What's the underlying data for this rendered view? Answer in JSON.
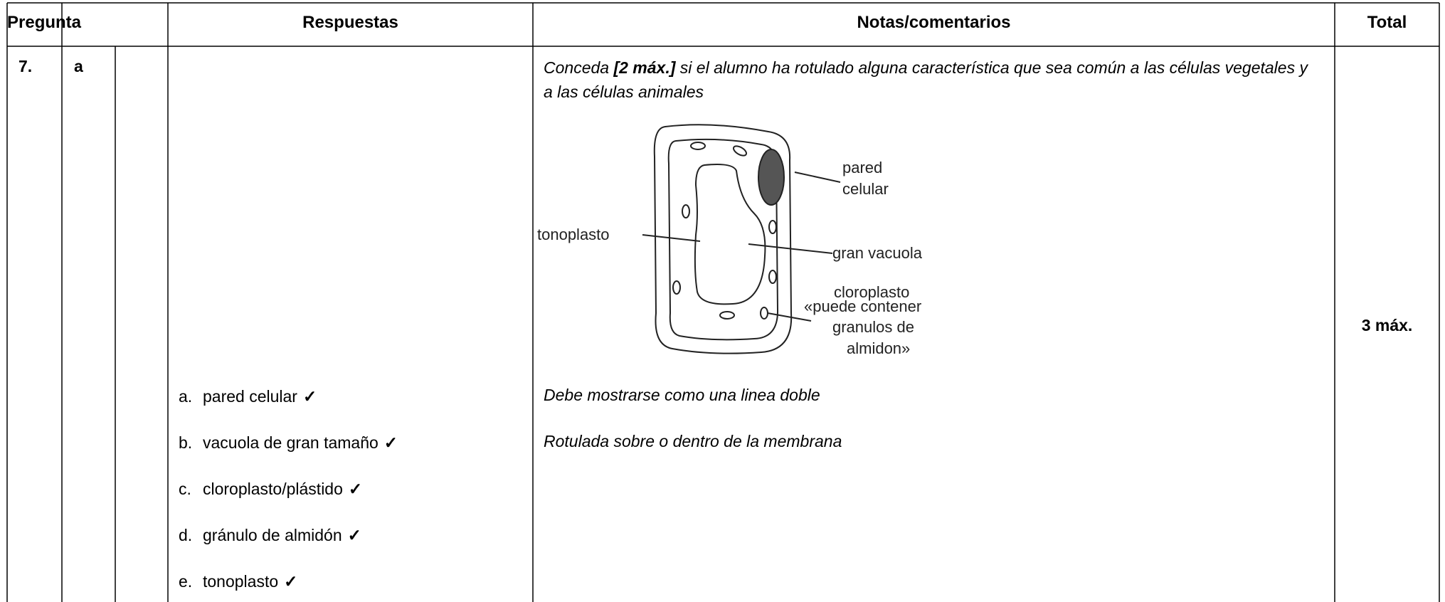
{
  "table": {
    "header": [
      "Pregunta",
      "Respuestas",
      "Notas/comentarios",
      "Total"
    ],
    "row": {
      "question": "7.",
      "part": "a",
      "answers": [
        {
          "letter": "a.",
          "text": "pared celular",
          "mark": "✓"
        },
        {
          "letter": "b.",
          "text": "vacuola de gran tamaño",
          "mark": "✓"
        },
        {
          "letter": "c.",
          "text": "cloroplasto/plástido",
          "mark": "✓"
        },
        {
          "letter": "d.",
          "text": "gránulo de almidón",
          "mark": "✓"
        },
        {
          "letter": "e.",
          "text": "tonoplasto",
          "mark": "✓"
        }
      ],
      "notes": {
        "intro": [
          "Conceda ",
          "[2 máx.]",
          " si el alumno ha rotulado alguna característica que sea común a las células vegetales y a las células animales"
        ],
        "diagram": {
          "labels": {
            "wall": [
              "pared",
              "celular"
            ],
            "tonoplast": "tonoplasto",
            "vacuole": "gran vacuola",
            "chloroplast": [
              "cloroplasto",
              "«puede contener",
              "granulos de",
              "almidon»"
            ]
          }
        },
        "lines": [
          "Debe mostrarse como una linea doble",
          "Rotulada sobre o dentro de la membrana"
        ]
      },
      "total": "3 máx."
    }
  }
}
